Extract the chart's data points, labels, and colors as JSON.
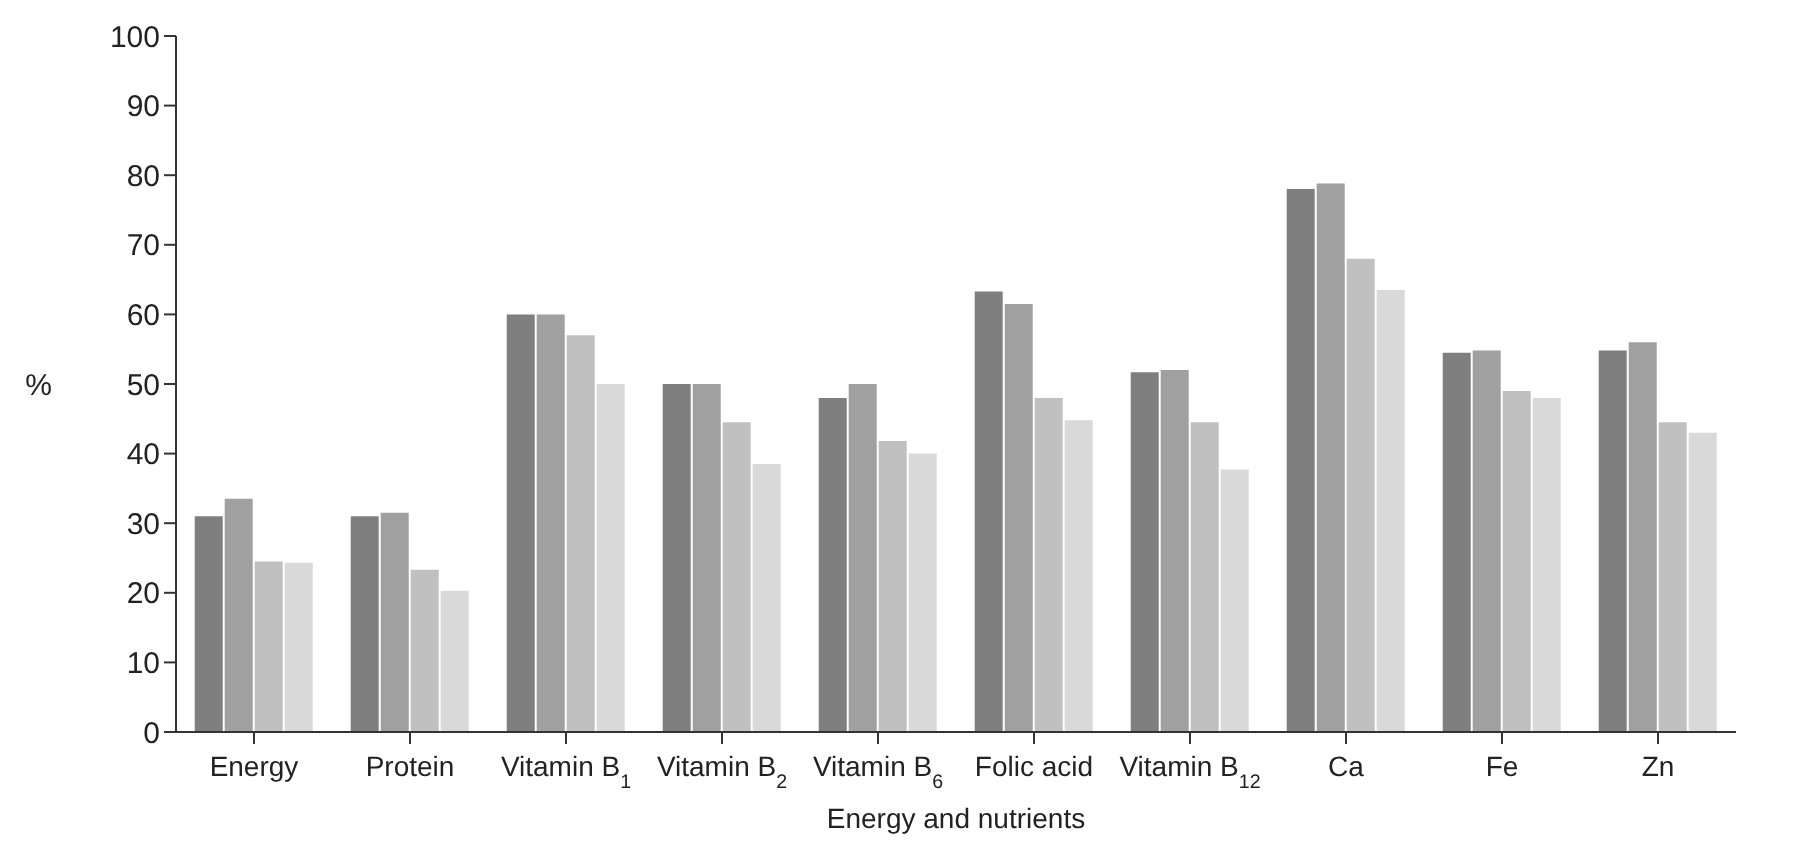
{
  "chart_data": {
    "type": "bar",
    "xlabel": "Energy and nutrients",
    "ylabel": "%",
    "categories": [
      "Energy",
      "Protein",
      "Vitamin B$_{1}$",
      "Vitamin B$_{2}$",
      "Vitamin B$_{6}$",
      "Folic acid",
      "Vitamin B$_{12}$",
      "Ca",
      "Fe",
      "Zn"
    ],
    "series": [
      {
        "color": "#7f7f7f",
        "values": [
          31,
          31,
          60,
          50,
          48,
          63.3,
          51.7,
          78,
          54.5,
          54.8
        ]
      },
      {
        "color": "#a0a0a0",
        "values": [
          33.5,
          31.5,
          60,
          50,
          50,
          61.5,
          52,
          78.8,
          54.8,
          56
        ]
      },
      {
        "color": "#c0c0c0",
        "values": [
          24.5,
          23.3,
          57,
          44.5,
          41.8,
          48,
          44.5,
          68,
          49,
          44.5
        ]
      },
      {
        "color": "#d9d9d9",
        "values": [
          24.3,
          20.3,
          50,
          38.5,
          40,
          44.8,
          37.7,
          63.5,
          48,
          43
        ]
      }
    ],
    "ylim": [
      0,
      100
    ],
    "yticks": [
      0,
      10,
      20,
      30,
      40,
      50,
      60,
      70,
      80,
      90,
      100
    ],
    "grid": false,
    "legend": false
  }
}
